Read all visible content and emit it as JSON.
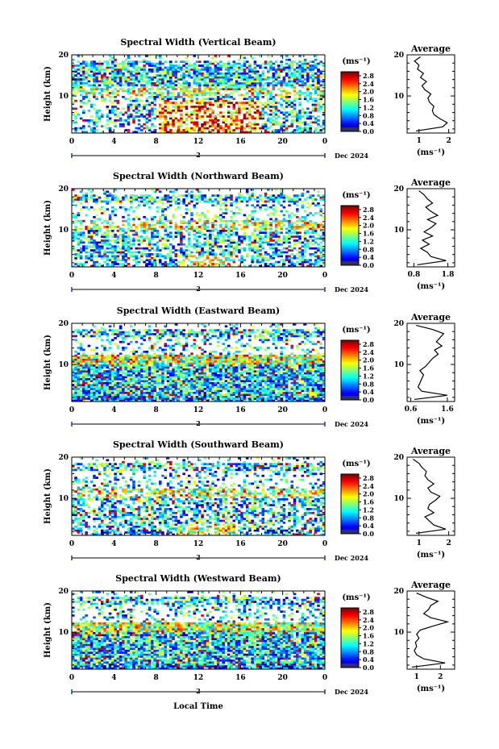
{
  "figure": {
    "xlabel": "Local Time",
    "date_label": "Dec 2024",
    "day_label": "2",
    "colorbar_unit": "(ms⁻¹)",
    "avg_title": "Average",
    "avg_xlabel": "(ms⁻¹)",
    "ylabel": "Height (km)"
  },
  "chart_data": [
    {
      "type": "heatmap",
      "title": "Spectral Width (Vertical Beam)",
      "xlabel": "Local Time",
      "ylabel": "Height (km)",
      "x_ticks": [
        "0",
        "4",
        "8",
        "12",
        "16",
        "20",
        "0"
      ],
      "xlim": [
        0,
        24
      ],
      "y_ticks": [
        "10",
        "20"
      ],
      "ylim": [
        1,
        20
      ],
      "colorbar": {
        "label": "(ms⁻¹)",
        "range": [
          0.0,
          3.0
        ],
        "ticks": [
          "0.0",
          "0.4",
          "0.8",
          "1.2",
          "1.6",
          "2.0",
          "2.4",
          "2.8"
        ]
      },
      "profile": {
        "title": "Average",
        "xlabel": "(ms⁻¹)",
        "x_ticks": [
          "1",
          "2"
        ],
        "xlim": [
          0.6,
          2.2
        ],
        "heights": [
          1.5,
          2.5,
          3.5,
          4.5,
          5.5,
          6.5,
          7.5,
          8.5,
          9.5,
          10.5,
          11.5,
          12.5,
          13.5,
          14.5,
          15.5,
          16.5,
          17.5,
          18.5,
          19.5
        ],
        "values": [
          0.9,
          1.8,
          1.95,
          1.7,
          1.5,
          1.45,
          1.5,
          1.35,
          1.3,
          1.4,
          1.2,
          1.1,
          1.25,
          1.05,
          1.15,
          0.95,
          1.0,
          0.85,
          1.05
        ]
      }
    },
    {
      "type": "heatmap",
      "title": "Spectral Width (Northward Beam)",
      "xlabel": "Local Time",
      "ylabel": "Height (km)",
      "x_ticks": [
        "0",
        "4",
        "8",
        "12",
        "16",
        "20",
        "0"
      ],
      "xlim": [
        0,
        24
      ],
      "y_ticks": [
        "10",
        "20"
      ],
      "ylim": [
        1,
        20
      ],
      "colorbar": {
        "label": "(ms⁻¹)",
        "range": [
          0.0,
          3.0
        ],
        "ticks": [
          "0.0",
          "0.4",
          "0.8",
          "1.2",
          "1.6",
          "2.0",
          "2.4",
          "2.8"
        ]
      },
      "profile": {
        "title": "Average",
        "xlabel": "(ms⁻¹)",
        "x_ticks": [
          "0.8",
          "1.8"
        ],
        "xlim": [
          0.6,
          2.0
        ],
        "heights": [
          1.5,
          2.5,
          3.5,
          4.5,
          5.5,
          6.5,
          7.5,
          8.5,
          9.5,
          10.5,
          11.5,
          12.5,
          13.5,
          14.5,
          15.5,
          16.5,
          17.5,
          18.5,
          19.5
        ],
        "values": [
          0.9,
          1.75,
          1.3,
          1.2,
          1.0,
          1.25,
          1.05,
          1.35,
          1.1,
          1.3,
          1.45,
          1.2,
          1.5,
          1.3,
          1.15,
          1.35,
          1.2,
          1.1,
          0.95
        ]
      }
    },
    {
      "type": "heatmap",
      "title": "Spectral Width (Eastward Beam)",
      "xlabel": "Local Time",
      "ylabel": "Height (km)",
      "x_ticks": [
        "0",
        "4",
        "8",
        "12",
        "16",
        "20",
        "0"
      ],
      "xlim": [
        0,
        24
      ],
      "y_ticks": [
        "10",
        "20"
      ],
      "ylim": [
        1,
        20
      ],
      "colorbar": {
        "label": "(ms⁻¹)",
        "range": [
          0.0,
          3.0
        ],
        "ticks": [
          "0.0",
          "0.4",
          "0.8",
          "1.2",
          "1.6",
          "2.0",
          "2.4",
          "2.8"
        ]
      },
      "profile": {
        "title": "Average",
        "xlabel": "(ms⁻¹)",
        "x_ticks": [
          "0.6",
          "1.6"
        ],
        "xlim": [
          0.5,
          1.8
        ],
        "heights": [
          1.5,
          2.5,
          3.5,
          4.5,
          5.5,
          6.5,
          7.5,
          8.5,
          9.5,
          10.5,
          11.5,
          12.5,
          13.5,
          14.5,
          15.5,
          16.5,
          17.5,
          18.5,
          19.5
        ],
        "values": [
          0.7,
          1.6,
          0.9,
          0.8,
          0.85,
          0.9,
          0.95,
          0.85,
          1.0,
          1.1,
          1.2,
          1.35,
          1.25,
          1.45,
          1.3,
          1.4,
          1.5,
          1.2,
          0.75
        ]
      }
    },
    {
      "type": "heatmap",
      "title": "Spectral Width (Southward Beam)",
      "xlabel": "Local Time",
      "ylabel": "Height (km)",
      "x_ticks": [
        "0",
        "4",
        "8",
        "12",
        "16",
        "20",
        "0"
      ],
      "xlim": [
        0,
        24
      ],
      "y_ticks": [
        "10",
        "20"
      ],
      "ylim": [
        1,
        20
      ],
      "colorbar": {
        "label": "(ms⁻¹)",
        "range": [
          0.0,
          3.0
        ],
        "ticks": [
          "0.0",
          "0.4",
          "0.8",
          "1.2",
          "1.6",
          "2.0",
          "2.4",
          "2.8"
        ]
      },
      "profile": {
        "title": "Average",
        "xlabel": "(ms⁻¹)",
        "x_ticks": [
          "1",
          "2"
        ],
        "xlim": [
          0.6,
          2.2
        ],
        "heights": [
          1.5,
          2.5,
          3.5,
          4.5,
          5.5,
          6.5,
          7.5,
          8.5,
          9.5,
          10.5,
          11.5,
          12.5,
          13.5,
          14.5,
          15.5,
          16.5,
          17.5,
          18.5,
          19.5
        ],
        "values": [
          0.9,
          1.9,
          1.5,
          1.35,
          1.2,
          1.5,
          1.3,
          1.35,
          1.55,
          1.7,
          1.4,
          1.3,
          1.5,
          1.3,
          1.2,
          1.25,
          1.1,
          1.0,
          0.8
        ]
      }
    },
    {
      "type": "heatmap",
      "title": "Spectral Width (Westward Beam)",
      "xlabel": "Local Time",
      "ylabel": "Height (km)",
      "x_ticks": [
        "0",
        "4",
        "8",
        "12",
        "16",
        "20",
        "0"
      ],
      "xlim": [
        0,
        24
      ],
      "y_ticks": [
        "10",
        "20"
      ],
      "ylim": [
        1,
        20
      ],
      "colorbar": {
        "label": "(ms⁻¹)",
        "range": [
          0.0,
          3.0
        ],
        "ticks": [
          "0.0",
          "0.4",
          "0.8",
          "1.2",
          "1.6",
          "2.0",
          "2.4",
          "2.8"
        ]
      },
      "profile": {
        "title": "Average",
        "xlabel": "(ms⁻¹)",
        "x_ticks": [
          "1",
          "2"
        ],
        "xlim": [
          0.6,
          2.6
        ],
        "heights": [
          1.5,
          2.5,
          3.5,
          4.5,
          5.5,
          6.5,
          7.5,
          8.5,
          9.5,
          10.5,
          11.5,
          12.5,
          13.5,
          14.5,
          15.5,
          16.5,
          17.5,
          18.5,
          19.5
        ],
        "values": [
          0.8,
          2.2,
          1.3,
          1.0,
          0.9,
          1.0,
          0.95,
          1.1,
          1.0,
          1.15,
          1.7,
          2.3,
          1.6,
          1.3,
          1.5,
          1.6,
          1.9,
          1.4,
          1.0
        ]
      }
    }
  ]
}
